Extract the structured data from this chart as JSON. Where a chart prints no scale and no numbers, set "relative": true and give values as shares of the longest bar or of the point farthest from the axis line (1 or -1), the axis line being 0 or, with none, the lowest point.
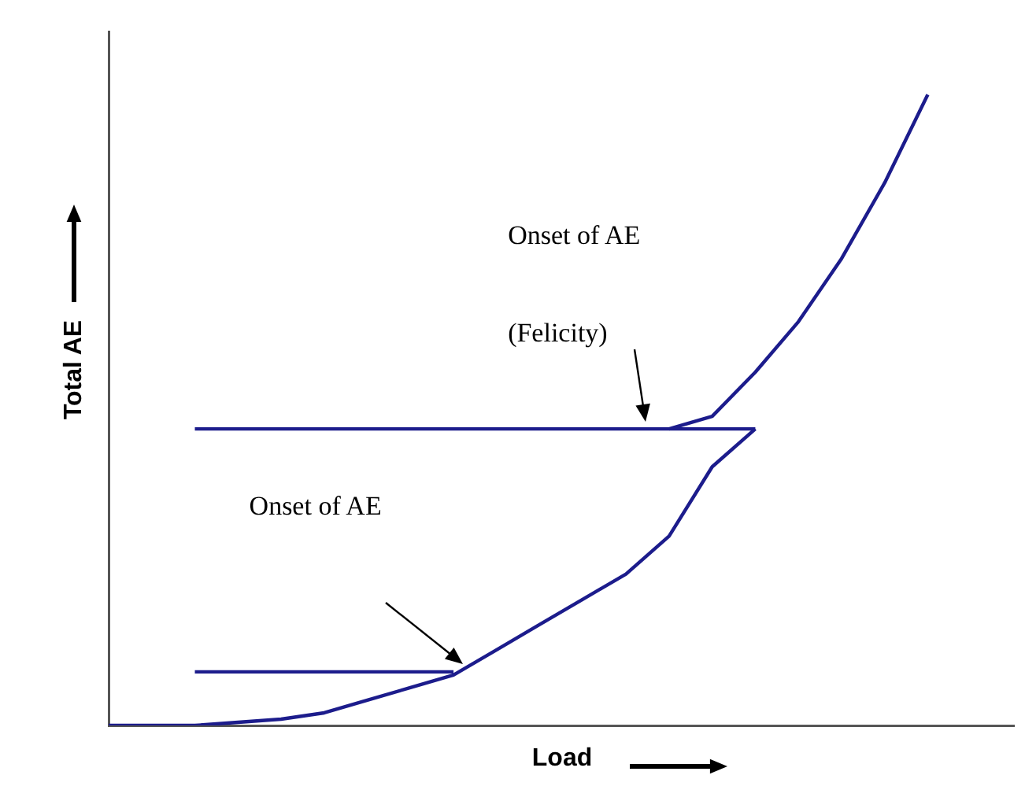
{
  "chart_data": {
    "type": "line",
    "relative": true,
    "xlabel": "Load",
    "ylabel": "Total AE",
    "marker": "none",
    "grid": false,
    "legend": false,
    "tick_labels": false,
    "categories": [
      null,
      null,
      null,
      null,
      null,
      null,
      null,
      null,
      null,
      null,
      null,
      null,
      null,
      null,
      null,
      null,
      null,
      null,
      null,
      null,
      null,
      null
    ],
    "series": [
      {
        "color": "#1c1c8c",
        "values": [
          0,
          0,
          0,
          0.005,
          0.01,
          0.02,
          0.04,
          0.06,
          0.08,
          0.12,
          0.16,
          0.2,
          0.24,
          0.3,
          0.41,
          0.47,
          null,
          null,
          null,
          null,
          null,
          null
        ]
      },
      {
        "color": "#1c1c8c",
        "values": [
          null,
          null,
          0.47,
          0.47,
          0.47,
          0.47,
          0.47,
          0.47,
          0.47,
          0.47,
          0.47,
          0.47,
          0.47,
          0.47,
          0.47,
          0.47,
          null,
          null,
          null,
          null,
          null,
          null
        ]
      },
      {
        "color": "#1c1c8c",
        "values": [
          null,
          null,
          null,
          null,
          null,
          null,
          null,
          null,
          null,
          null,
          null,
          null,
          null,
          0.47,
          0.49,
          0.56,
          0.64,
          0.74,
          0.86,
          1,
          null,
          null
        ]
      },
      {
        "color": "#1c1c8c",
        "values": [
          null,
          null,
          0.085,
          0.085,
          0.085,
          0.085,
          0.085,
          0.085,
          0.085,
          null,
          null,
          null,
          null,
          null,
          null,
          null,
          null,
          null,
          null,
          null,
          null,
          null
        ]
      }
    ],
    "annotations": [
      "Onset of AE",
      "(Felicity)",
      "Onset of AE"
    ]
  }
}
